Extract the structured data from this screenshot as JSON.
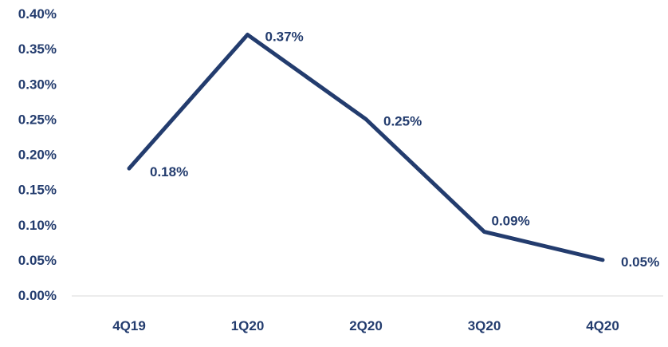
{
  "chart_data": {
    "type": "line",
    "categories": [
      "4Q19",
      "1Q20",
      "2Q20",
      "3Q20",
      "4Q20"
    ],
    "series": [
      {
        "values": [
          0.18,
          0.37,
          0.25,
          0.09,
          0.05
        ]
      }
    ],
    "data_labels": [
      "0.18%",
      "0.37%",
      "0.25%",
      "0.09%",
      "0.05%"
    ],
    "y_ticks": [
      0,
      0.05,
      0.1,
      0.15,
      0.2,
      0.25,
      0.3,
      0.35,
      0.4
    ],
    "y_tick_labels": [
      "0.00%",
      "0.05%",
      "0.10%",
      "0.15%",
      "0.20%",
      "0.25%",
      "0.30%",
      "0.35%",
      "0.40%"
    ],
    "ylim": [
      0,
      0.4
    ],
    "grid": false,
    "colors": {
      "line": "#233c6e",
      "text": "#233c6e",
      "axis": "#d9d9d9"
    }
  }
}
